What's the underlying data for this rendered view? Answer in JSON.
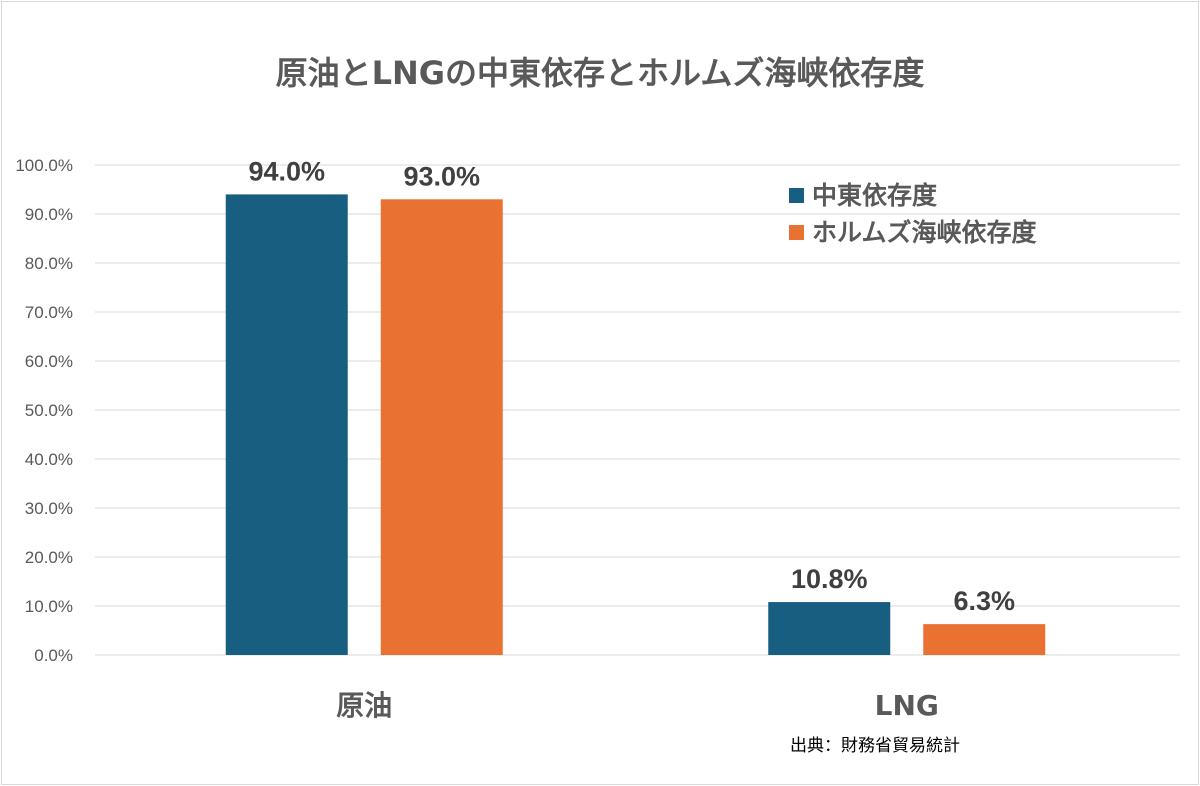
{
  "chart_data": {
    "type": "bar",
    "title": "原油とLNGの中東依存とホルムズ海峡依存度",
    "categories": [
      "原油",
      "LNG"
    ],
    "series": [
      {
        "name": "中東依存度",
        "values": [
          94.0,
          10.8
        ],
        "color": "#175E80"
      },
      {
        "name": "ホルムズ海峡依存度",
        "values": [
          93.0,
          6.3
        ],
        "color": "#E97132"
      }
    ],
    "data_labels": [
      [
        "94.0%",
        "10.8%"
      ],
      [
        "93.0%",
        "6.3%"
      ]
    ],
    "ylim": [
      0,
      100
    ],
    "yticks": [
      "0.0%",
      "10.0%",
      "20.0%",
      "30.0%",
      "40.0%",
      "50.0%",
      "60.0%",
      "70.0%",
      "80.0%",
      "90.0%",
      "100.0%"
    ],
    "xlabel": "",
    "ylabel": "",
    "grid": true,
    "legend": "top-right",
    "annotation": "出典：財務省貿易統計"
  }
}
